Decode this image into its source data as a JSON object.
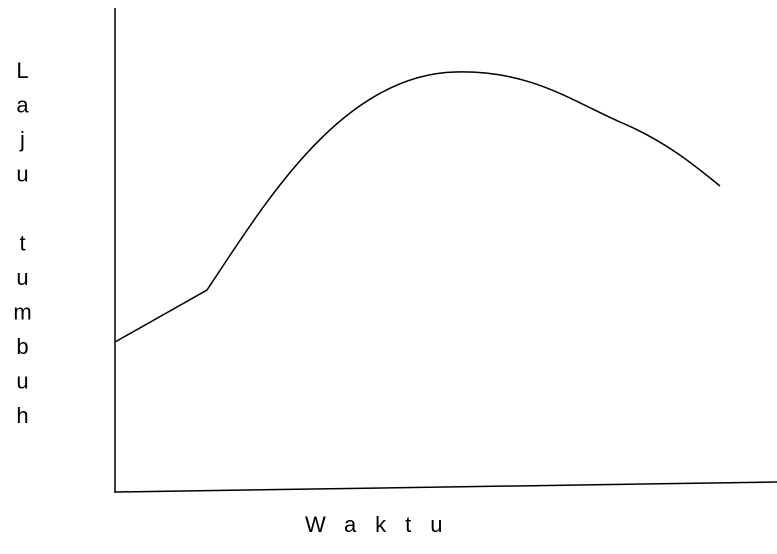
{
  "y_axis_label": "Laju tumbuh",
  "x_axis_label": "Waktu"
}
